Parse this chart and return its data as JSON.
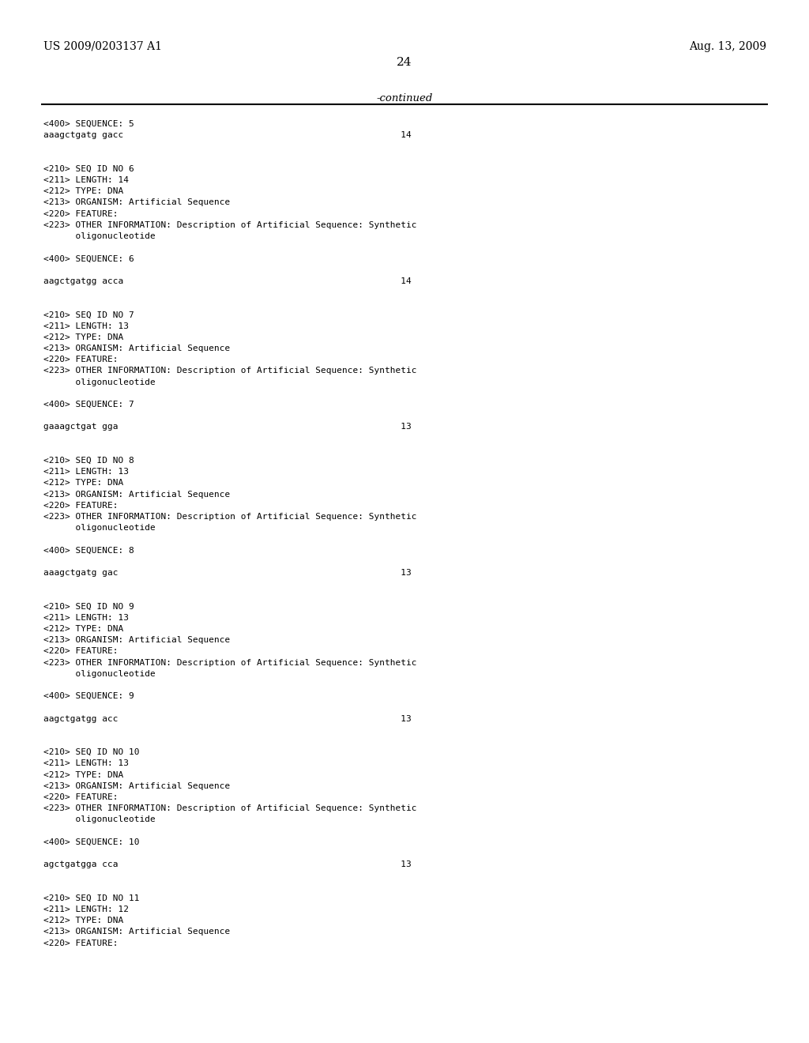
{
  "header_left": "US 2009/0203137 A1",
  "header_right": "Aug. 13, 2009",
  "page_number": "24",
  "continued_label": "-continued",
  "background_color": "#ffffff",
  "text_color": "#000000",
  "content_lines": [
    {
      "text": "<400> SEQUENCE: 5",
      "blank_before": 0
    },
    {
      "text": "aaagctgatg gacc                                                    14",
      "blank_before": 0
    },
    {
      "text": "",
      "blank_before": 0
    },
    {
      "text": "",
      "blank_before": 0
    },
    {
      "text": "<210> SEQ ID NO 6",
      "blank_before": 0
    },
    {
      "text": "<211> LENGTH: 14",
      "blank_before": 0
    },
    {
      "text": "<212> TYPE: DNA",
      "blank_before": 0
    },
    {
      "text": "<213> ORGANISM: Artificial Sequence",
      "blank_before": 0
    },
    {
      "text": "<220> FEATURE:",
      "blank_before": 0
    },
    {
      "text": "<223> OTHER INFORMATION: Description of Artificial Sequence: Synthetic",
      "blank_before": 0
    },
    {
      "text": "      oligonucleotide",
      "blank_before": 0
    },
    {
      "text": "",
      "blank_before": 0
    },
    {
      "text": "<400> SEQUENCE: 6",
      "blank_before": 0
    },
    {
      "text": "",
      "blank_before": 0
    },
    {
      "text": "aagctgatgg acca                                                    14",
      "blank_before": 0
    },
    {
      "text": "",
      "blank_before": 0
    },
    {
      "text": "",
      "blank_before": 0
    },
    {
      "text": "<210> SEQ ID NO 7",
      "blank_before": 0
    },
    {
      "text": "<211> LENGTH: 13",
      "blank_before": 0
    },
    {
      "text": "<212> TYPE: DNA",
      "blank_before": 0
    },
    {
      "text": "<213> ORGANISM: Artificial Sequence",
      "blank_before": 0
    },
    {
      "text": "<220> FEATURE:",
      "blank_before": 0
    },
    {
      "text": "<223> OTHER INFORMATION: Description of Artificial Sequence: Synthetic",
      "blank_before": 0
    },
    {
      "text": "      oligonucleotide",
      "blank_before": 0
    },
    {
      "text": "",
      "blank_before": 0
    },
    {
      "text": "<400> SEQUENCE: 7",
      "blank_before": 0
    },
    {
      "text": "",
      "blank_before": 0
    },
    {
      "text": "gaaagctgat gga                                                     13",
      "blank_before": 0
    },
    {
      "text": "",
      "blank_before": 0
    },
    {
      "text": "",
      "blank_before": 0
    },
    {
      "text": "<210> SEQ ID NO 8",
      "blank_before": 0
    },
    {
      "text": "<211> LENGTH: 13",
      "blank_before": 0
    },
    {
      "text": "<212> TYPE: DNA",
      "blank_before": 0
    },
    {
      "text": "<213> ORGANISM: Artificial Sequence",
      "blank_before": 0
    },
    {
      "text": "<220> FEATURE:",
      "blank_before": 0
    },
    {
      "text": "<223> OTHER INFORMATION: Description of Artificial Sequence: Synthetic",
      "blank_before": 0
    },
    {
      "text": "      oligonucleotide",
      "blank_before": 0
    },
    {
      "text": "",
      "blank_before": 0
    },
    {
      "text": "<400> SEQUENCE: 8",
      "blank_before": 0
    },
    {
      "text": "",
      "blank_before": 0
    },
    {
      "text": "aaagctgatg gac                                                     13",
      "blank_before": 0
    },
    {
      "text": "",
      "blank_before": 0
    },
    {
      "text": "",
      "blank_before": 0
    },
    {
      "text": "<210> SEQ ID NO 9",
      "blank_before": 0
    },
    {
      "text": "<211> LENGTH: 13",
      "blank_before": 0
    },
    {
      "text": "<212> TYPE: DNA",
      "blank_before": 0
    },
    {
      "text": "<213> ORGANISM: Artificial Sequence",
      "blank_before": 0
    },
    {
      "text": "<220> FEATURE:",
      "blank_before": 0
    },
    {
      "text": "<223> OTHER INFORMATION: Description of Artificial Sequence: Synthetic",
      "blank_before": 0
    },
    {
      "text": "      oligonucleotide",
      "blank_before": 0
    },
    {
      "text": "",
      "blank_before": 0
    },
    {
      "text": "<400> SEQUENCE: 9",
      "blank_before": 0
    },
    {
      "text": "",
      "blank_before": 0
    },
    {
      "text": "aagctgatgg acc                                                     13",
      "blank_before": 0
    },
    {
      "text": "",
      "blank_before": 0
    },
    {
      "text": "",
      "blank_before": 0
    },
    {
      "text": "<210> SEQ ID NO 10",
      "blank_before": 0
    },
    {
      "text": "<211> LENGTH: 13",
      "blank_before": 0
    },
    {
      "text": "<212> TYPE: DNA",
      "blank_before": 0
    },
    {
      "text": "<213> ORGANISM: Artificial Sequence",
      "blank_before": 0
    },
    {
      "text": "<220> FEATURE:",
      "blank_before": 0
    },
    {
      "text": "<223> OTHER INFORMATION: Description of Artificial Sequence: Synthetic",
      "blank_before": 0
    },
    {
      "text": "      oligonucleotide",
      "blank_before": 0
    },
    {
      "text": "",
      "blank_before": 0
    },
    {
      "text": "<400> SEQUENCE: 10",
      "blank_before": 0
    },
    {
      "text": "",
      "blank_before": 0
    },
    {
      "text": "agctgatgga cca                                                     13",
      "blank_before": 0
    },
    {
      "text": "",
      "blank_before": 0
    },
    {
      "text": "",
      "blank_before": 0
    },
    {
      "text": "<210> SEQ ID NO 11",
      "blank_before": 0
    },
    {
      "text": "<211> LENGTH: 12",
      "blank_before": 0
    },
    {
      "text": "<212> TYPE: DNA",
      "blank_before": 0
    },
    {
      "text": "<213> ORGANISM: Artificial Sequence",
      "blank_before": 0
    },
    {
      "text": "<220> FEATURE:",
      "blank_before": 0
    }
  ]
}
